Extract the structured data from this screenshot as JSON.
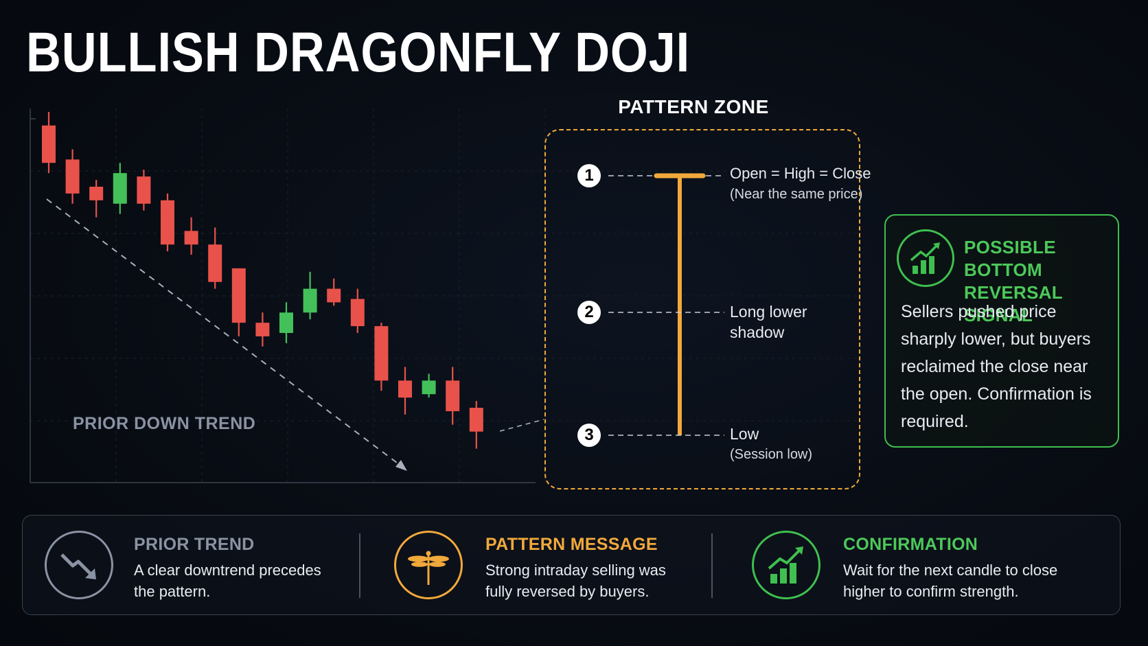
{
  "title": "BULLISH DRAGONFLY DOJI",
  "colors": {
    "bearish": "#e8524a",
    "bullish": "#44c05a",
    "zone": "#f2a93b",
    "confirm": "#3fbf4f",
    "muted": "#8a93a3"
  },
  "chart_data": {
    "type": "candlestick",
    "title": "",
    "annotation": "PRIOR DOWN TREND",
    "candles": [
      {
        "open": 95,
        "close": 84,
        "high": 99,
        "low": 81
      },
      {
        "open": 85,
        "close": 75,
        "high": 88,
        "low": 72
      },
      {
        "open": 77,
        "close": 73,
        "high": 79,
        "low": 68
      },
      {
        "open": 72,
        "close": 81,
        "high": 84,
        "low": 69
      },
      {
        "open": 80,
        "close": 72,
        "high": 82,
        "low": 70
      },
      {
        "open": 73,
        "close": 60,
        "high": 75,
        "low": 58
      },
      {
        "open": 64,
        "close": 60,
        "high": 68,
        "low": 57
      },
      {
        "open": 60,
        "close": 49,
        "high": 65,
        "low": 47
      },
      {
        "open": 53,
        "close": 37,
        "high": 53,
        "low": 33
      },
      {
        "open": 37,
        "close": 33,
        "high": 40,
        "low": 30
      },
      {
        "open": 34,
        "close": 40,
        "high": 43,
        "low": 31
      },
      {
        "open": 40,
        "close": 47,
        "high": 52,
        "low": 38
      },
      {
        "open": 47,
        "close": 43,
        "high": 50,
        "low": 42
      },
      {
        "open": 44,
        "close": 36,
        "high": 47,
        "low": 34
      },
      {
        "open": 36,
        "close": 20,
        "high": 37,
        "low": 17
      },
      {
        "open": 20,
        "close": 15,
        "high": 24,
        "low": 10
      },
      {
        "open": 16,
        "close": 20,
        "high": 22,
        "low": 15
      },
      {
        "open": 20,
        "close": 11,
        "high": 24,
        "low": 7
      },
      {
        "open": 12,
        "close": 5,
        "high": 14,
        "low": 0
      }
    ],
    "ylim": [
      -10,
      100
    ],
    "grid": true
  },
  "pattern_zone": {
    "title": "PATTERN ZONE",
    "points": [
      {
        "num": "1",
        "label": "Open = High = Close",
        "sub": "(Near the same price)"
      },
      {
        "num": "2",
        "label": "Long lower",
        "sub": "shadow"
      },
      {
        "num": "3",
        "label": "Low",
        "sub": "(Session low)"
      }
    ]
  },
  "signal": {
    "title_line1": "POSSIBLE BOTTOM",
    "title_line2": "REVERSAL SIGNAL",
    "body": "Sellers pushed price sharply lower, but buyers reclaimed the close near the open. Confirmation is required.",
    "icon": "growth-chart-icon"
  },
  "bottom": [
    {
      "title": "PRIOR TREND",
      "text": "A clear downtrend precedes the pattern.",
      "icon": "downtrend-arrow-icon",
      "color": "#8a93a3"
    },
    {
      "title": "PATTERN MESSAGE",
      "text": "Strong intraday selling was fully reversed by buyers.",
      "icon": "dragonfly-icon",
      "color": "#f2a93b"
    },
    {
      "title": "CONFIRMATION",
      "text": "Wait for the next candle to close higher to confirm strength.",
      "icon": "growth-chart-icon",
      "color": "#3fbf4f"
    }
  ]
}
